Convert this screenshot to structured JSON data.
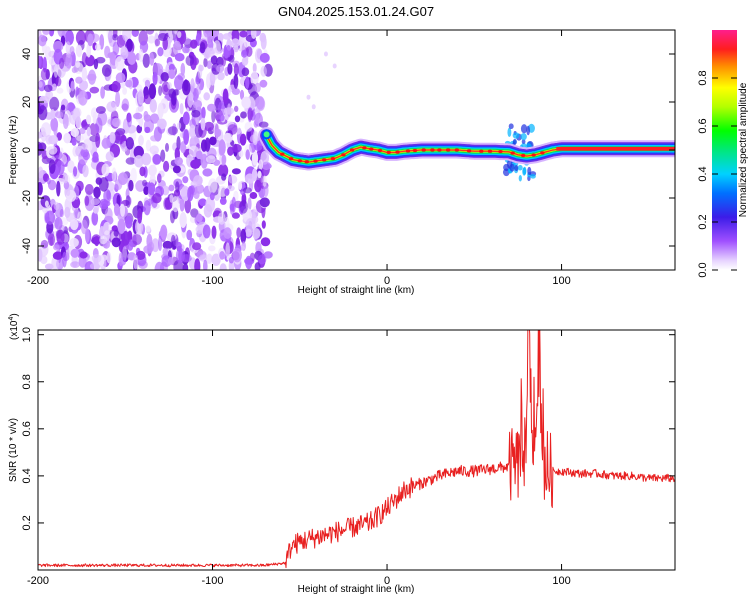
{
  "figure": {
    "title": "GN04.2025.153.01.24.G07"
  },
  "chart_data": [
    {
      "type": "heatmap",
      "title": "GN04.2025.153.01.24.G07",
      "xlabel": "Height of straight line (km)",
      "ylabel": "Frequency (Hz)",
      "xlim": [
        -200,
        165
      ],
      "ylim": [
        -50,
        50
      ],
      "xticks": [
        -200,
        -100,
        0,
        100
      ],
      "yticks": [
        -40,
        -20,
        0,
        20,
        40
      ],
      "noise_region": [
        -200,
        -68
      ],
      "ridge": {
        "x": [
          -69,
          -66,
          -62,
          -58,
          -54,
          -50,
          -45,
          -40,
          -35,
          -30,
          -25,
          -20,
          -15,
          -10,
          -5,
          0,
          5,
          10,
          20,
          30,
          40,
          50,
          60,
          70,
          75,
          80,
          85,
          90,
          95,
          100,
          165
        ],
        "y": [
          6,
          2,
          -1,
          -2.5,
          -4,
          -4.5,
          -5,
          -4.5,
          -4,
          -3.5,
          -2,
          0,
          1.2,
          0.5,
          0,
          -1,
          -1,
          -0.5,
          0,
          0,
          0,
          -0.5,
          -0.5,
          -0.8,
          -2,
          -2.5,
          -2,
          -1,
          0,
          0.5,
          0.5
        ]
      },
      "colorbar": {
        "label": "Normalized spectral amplitude",
        "range": [
          0,
          1
        ],
        "ticks": [
          "0.0",
          "0.2",
          "0.4",
          "0.6",
          "0.8"
        ],
        "tick_values": [
          0,
          0.2,
          0.4,
          0.6,
          0.8
        ]
      }
    },
    {
      "type": "line",
      "xlabel": "Height of straight line (km)",
      "ylabel": "SNR (10 * v/v)",
      "scale_label": "(x10",
      "scale_exponent": "4",
      "scale_close": ")",
      "xlim": [
        -200,
        165
      ],
      "ylim": [
        0,
        1.02
      ],
      "xticks": [
        -200,
        -100,
        0,
        100
      ],
      "yticks": [
        "0.2",
        "0.4",
        "0.6",
        "0.8",
        "1.0"
      ],
      "ytick_values": [
        0.2,
        0.4,
        0.6,
        0.8,
        1.0
      ],
      "color": "#e82020",
      "series": [
        {
          "name": "SNR",
          "x": [
            -200,
            -70,
            -58,
            -55,
            -50,
            -40,
            -30,
            -20,
            -10,
            0,
            10,
            20,
            30,
            40,
            50,
            60,
            70,
            75,
            78,
            80,
            81,
            83,
            85,
            87,
            90,
            95,
            100,
            110,
            120,
            130,
            140,
            150,
            165
          ],
          "values": [
            0.02,
            0.02,
            0.03,
            0.1,
            0.12,
            0.14,
            0.16,
            0.18,
            0.2,
            0.26,
            0.34,
            0.37,
            0.4,
            0.42,
            0.42,
            0.43,
            0.44,
            0.45,
            0.48,
            0.55,
            1.05,
            0.6,
            0.55,
            0.9,
            0.45,
            0.42,
            0.42,
            0.41,
            0.41,
            0.4,
            0.4,
            0.39,
            0.39
          ]
        }
      ]
    }
  ]
}
